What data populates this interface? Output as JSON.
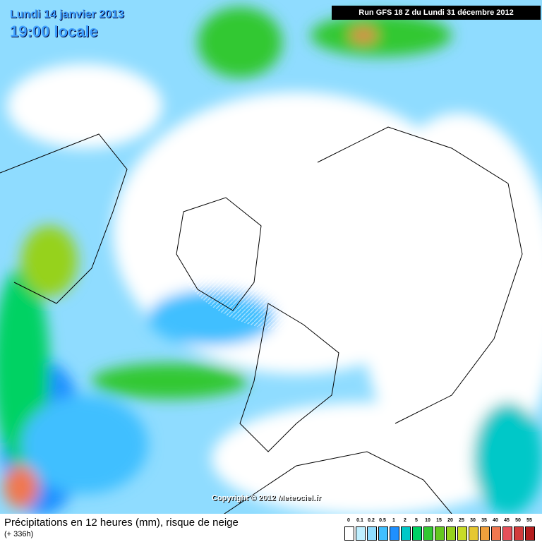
{
  "header": {
    "date": "Lundi 14 janvier 2013",
    "time": "19:00 locale",
    "run": "Run GFS 18 Z du Lundi 31 décembre 2012"
  },
  "copyright": "Copyright © 2012 Meteociel.fr",
  "footer": {
    "title": "Précipitations en 12 heures (mm), risque de neige",
    "subtitle": "(+ 336h)"
  },
  "legend": [
    {
      "label": "0",
      "color": "#ffffff"
    },
    {
      "label": "0.1",
      "color": "#bfefff"
    },
    {
      "label": "0.2",
      "color": "#8fdcff"
    },
    {
      "label": "0.5",
      "color": "#3fbfff"
    },
    {
      "label": "1",
      "color": "#1e90ff"
    },
    {
      "label": "2",
      "color": "#00c8c8"
    },
    {
      "label": "5",
      "color": "#00d264"
    },
    {
      "label": "10",
      "color": "#32c832"
    },
    {
      "label": "15",
      "color": "#64c81e"
    },
    {
      "label": "20",
      "color": "#96d21e"
    },
    {
      "label": "25",
      "color": "#c8dc28"
    },
    {
      "label": "30",
      "color": "#e6c832"
    },
    {
      "label": "35",
      "color": "#f0a03c"
    },
    {
      "label": "40",
      "color": "#f07850"
    },
    {
      "label": "45",
      "color": "#e6505a"
    },
    {
      "label": "50",
      "color": "#d23c3c"
    },
    {
      "label": "55",
      "color": "#b41e1e"
    }
  ]
}
